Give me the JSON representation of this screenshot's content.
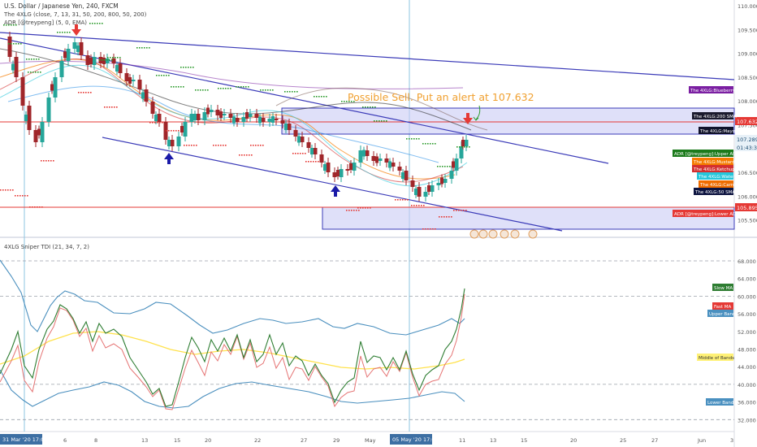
{
  "header": {
    "symbol_line": "U.S. Dollar / Japanese Yen, 240, FXCM",
    "indicator_1": "The 4XLG (close, 7, 13, 31, 50, 200, 800, 50, 200)",
    "indicator_2": "ADR [@treypeng] (5, 0, EMA)"
  },
  "annotation": "Possible Sell. Put an alert at 107.632",
  "price_axis": {
    "ticks": [
      "110.000",
      "109.500",
      "109.000",
      "108.500",
      "108.000",
      "107.500",
      "107.000",
      "106.500",
      "106.000",
      "105.500"
    ],
    "current_price": "107.289",
    "countdown": "01:43:32",
    "alert_price": "107.632",
    "lower_price": "105.895"
  },
  "right_labels": [
    {
      "text": "The 4XLG:Blueberry",
      "bg": "#7b1fa2",
      "fg": "#ffffff"
    },
    {
      "text": "The 4XLG:200 SMA",
      "bg": "#1a1a2e",
      "fg": "#ffffff"
    },
    {
      "text": "The 4XLG:Mayo",
      "bg": "#10122b",
      "fg": "#ffffff"
    },
    {
      "text": "ADR [@treypeng]:Upper ADR",
      "bg": "#1b7a1b",
      "fg": "#ffffff"
    },
    {
      "text": "The 4XLG:Mustard",
      "bg": "#f57c00",
      "fg": "#ffffff"
    },
    {
      "text": "The 4XLG:Ketchup",
      "bg": "#d32f2f",
      "fg": "#ffffff"
    },
    {
      "text": "The 4XLG:Water",
      "bg": "#26c6da",
      "fg": "#ffffff"
    },
    {
      "text": "The 4XLG:Carrot",
      "bg": "#ef6c00",
      "fg": "#ffffff"
    },
    {
      "text": "The 4XLG:50 SMA",
      "bg": "#0d1440",
      "fg": "#ffffff"
    },
    {
      "text": "ADR [@treypeng]:Lower ADR",
      "bg": "#e53935",
      "fg": "#ffffff"
    }
  ],
  "sub_pane": {
    "title": "4XLG Sniper TDI (21, 34, 7, 2)",
    "ticks": [
      "68.000",
      "64.000",
      "60.000",
      "56.000",
      "52.000",
      "48.000",
      "44.000",
      "40.000",
      "36.000",
      "32.000"
    ],
    "labels": [
      {
        "text": "Slow MA",
        "bg": "#2e7d32"
      },
      {
        "text": "Fast MA",
        "bg": "#e53935"
      },
      {
        "text": "Upper Band",
        "bg": "#4a90c0"
      },
      {
        "text": "Middle of Bands",
        "bg": "#fff176",
        "fg": "#333333"
      },
      {
        "text": "Lower Band",
        "bg": "#4a90c0"
      }
    ]
  },
  "time_axis": {
    "ticks": [
      "6",
      "8",
      "13",
      "15",
      "20",
      "22",
      "27",
      "29",
      "May",
      "7",
      "11",
      "13",
      "15",
      "20",
      "25",
      "27",
      "Jun",
      "3"
    ],
    "highlight_start": "31 Mar '20  17:00",
    "highlight_end": "05 May '20  17:00"
  },
  "colors": {
    "up_candle": "#26a69a",
    "down_candle": "#a0262a",
    "trend_line": "#3b3bb8",
    "alert_line": "#e53935",
    "box_fill": "#c9ccf5",
    "annotation": "#f0a030",
    "green_dots": "#2e9c2e",
    "red_dots": "#e53935"
  },
  "icons": {
    "sell_arrow": "down-arrow-icon",
    "buy_arrow": "up-arrow-icon"
  }
}
